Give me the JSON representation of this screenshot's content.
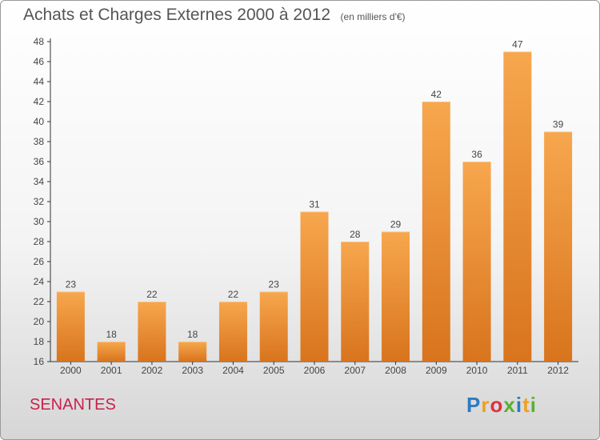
{
  "chart_data": {
    "type": "bar",
    "title": "Achats et Charges Externes 2000 à 2012",
    "subtitle": "(en milliers d'€)",
    "categories": [
      "2000",
      "2001",
      "2002",
      "2003",
      "2004",
      "2005",
      "2006",
      "2007",
      "2008",
      "2009",
      "2010",
      "2011",
      "2012"
    ],
    "values": [
      23,
      18,
      22,
      18,
      22,
      23,
      31,
      28,
      29,
      42,
      36,
      47,
      39
    ],
    "ylim": [
      16,
      48
    ],
    "yticks": [
      16,
      18,
      20,
      22,
      24,
      26,
      28,
      30,
      32,
      34,
      36,
      38,
      40,
      42,
      44,
      46,
      48
    ],
    "grid": false,
    "bar_color_top": "#f7a74e",
    "bar_color_bottom": "#d8741d"
  },
  "place": "SENANTES",
  "logo": {
    "letters": [
      "P",
      "r",
      "o",
      "x",
      "i",
      "t",
      "i"
    ],
    "colors": [
      "#2b7bc4",
      "#f0a020",
      "#e03040",
      "#59b030",
      "#2b7bc4",
      "#f0a020",
      "#59b030"
    ]
  }
}
